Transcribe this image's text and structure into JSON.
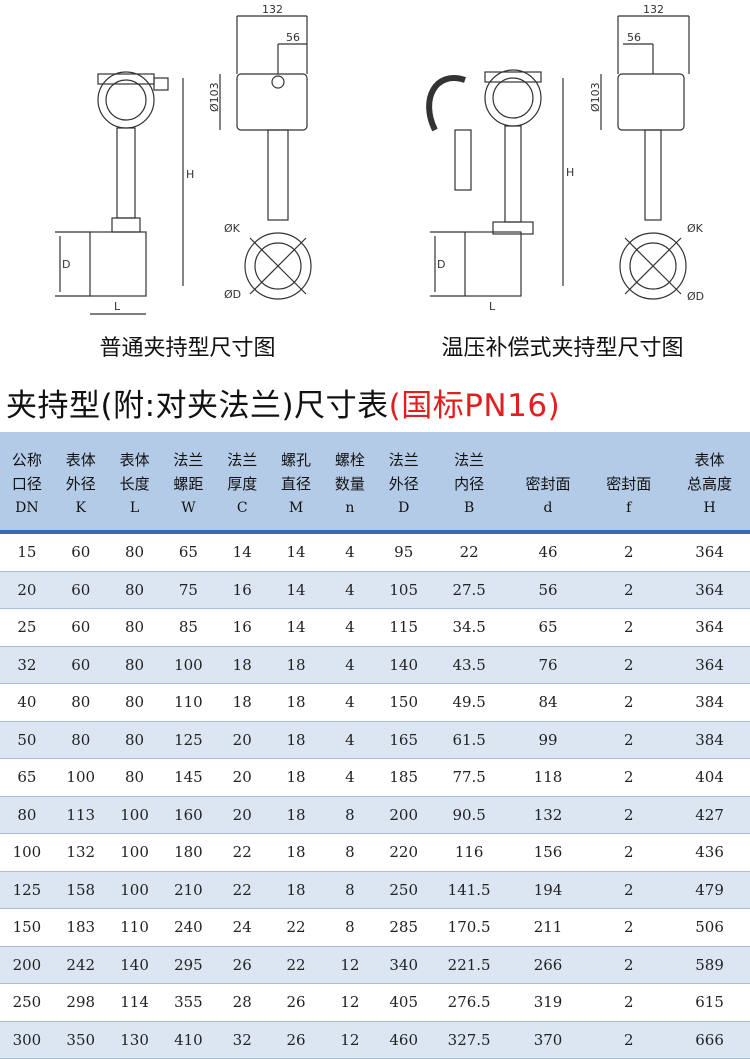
{
  "drawings": [
    {
      "caption": "普通夹持型尺寸图",
      "dims": {
        "width": "132",
        "offset": "56",
        "dia": "Ø103",
        "height": "H",
        "body_dia": "D",
        "length": "L",
        "k": "ØK",
        "d": "ØD"
      }
    },
    {
      "caption": "温压补偿式夹持型尺寸图",
      "dims": {
        "width": "132",
        "offset": "56",
        "dia": "Ø103",
        "height": "H",
        "body_dia": "D",
        "length": "L",
        "k": "ØK",
        "d": "ØD"
      }
    }
  ],
  "title": {
    "main": "夹持型(附:对夹法兰)尺寸表",
    "standard": "(国标PN16)"
  },
  "table": {
    "columns": [
      {
        "label": [
          "公称",
          "口径"
        ],
        "symbol": "DN"
      },
      {
        "label": [
          "表体",
          "外径"
        ],
        "symbol": "K"
      },
      {
        "label": [
          "表体",
          "长度"
        ],
        "symbol": "L"
      },
      {
        "label": [
          "法兰",
          "螺距"
        ],
        "symbol": "W"
      },
      {
        "label": [
          "法兰",
          "厚度"
        ],
        "symbol": "C"
      },
      {
        "label": [
          "螺孔",
          "直径"
        ],
        "symbol": "M"
      },
      {
        "label": [
          "螺栓",
          "数量"
        ],
        "symbol": "n"
      },
      {
        "label": [
          "法兰",
          "外径"
        ],
        "symbol": "D"
      },
      {
        "label": [
          "法兰",
          "内径"
        ],
        "symbol": "B"
      },
      {
        "label": [
          "",
          "密封面"
        ],
        "symbol": "d"
      },
      {
        "label": [
          "",
          "密封面"
        ],
        "symbol": "f"
      },
      {
        "label": [
          "表体",
          "总高度"
        ],
        "symbol": "H"
      }
    ],
    "rows": [
      [
        "15",
        "60",
        "80",
        "65",
        "14",
        "14",
        "4",
        "95",
        "22",
        "46",
        "2",
        "364"
      ],
      [
        "20",
        "60",
        "80",
        "75",
        "16",
        "14",
        "4",
        "105",
        "27.5",
        "56",
        "2",
        "364"
      ],
      [
        "25",
        "60",
        "80",
        "85",
        "16",
        "14",
        "4",
        "115",
        "34.5",
        "65",
        "2",
        "364"
      ],
      [
        "32",
        "60",
        "80",
        "100",
        "18",
        "18",
        "4",
        "140",
        "43.5",
        "76",
        "2",
        "364"
      ],
      [
        "40",
        "80",
        "80",
        "110",
        "18",
        "18",
        "4",
        "150",
        "49.5",
        "84",
        "2",
        "384"
      ],
      [
        "50",
        "80",
        "80",
        "125",
        "20",
        "18",
        "4",
        "165",
        "61.5",
        "99",
        "2",
        "384"
      ],
      [
        "65",
        "100",
        "80",
        "145",
        "20",
        "18",
        "4",
        "185",
        "77.5",
        "118",
        "2",
        "404"
      ],
      [
        "80",
        "113",
        "100",
        "160",
        "20",
        "18",
        "8",
        "200",
        "90.5",
        "132",
        "2",
        "427"
      ],
      [
        "100",
        "132",
        "100",
        "180",
        "22",
        "18",
        "8",
        "220",
        "116",
        "156",
        "2",
        "436"
      ],
      [
        "125",
        "158",
        "100",
        "210",
        "22",
        "18",
        "8",
        "250",
        "141.5",
        "194",
        "2",
        "479"
      ],
      [
        "150",
        "183",
        "110",
        "240",
        "24",
        "22",
        "8",
        "285",
        "170.5",
        "211",
        "2",
        "506"
      ],
      [
        "200",
        "242",
        "140",
        "295",
        "26",
        "22",
        "12",
        "340",
        "221.5",
        "266",
        "2",
        "589"
      ],
      [
        "250",
        "298",
        "114",
        "355",
        "28",
        "26",
        "12",
        "405",
        "276.5",
        "319",
        "2",
        "615"
      ],
      [
        "300",
        "350",
        "130",
        "410",
        "32",
        "26",
        "12",
        "460",
        "327.5",
        "370",
        "2",
        "666"
      ]
    ]
  }
}
